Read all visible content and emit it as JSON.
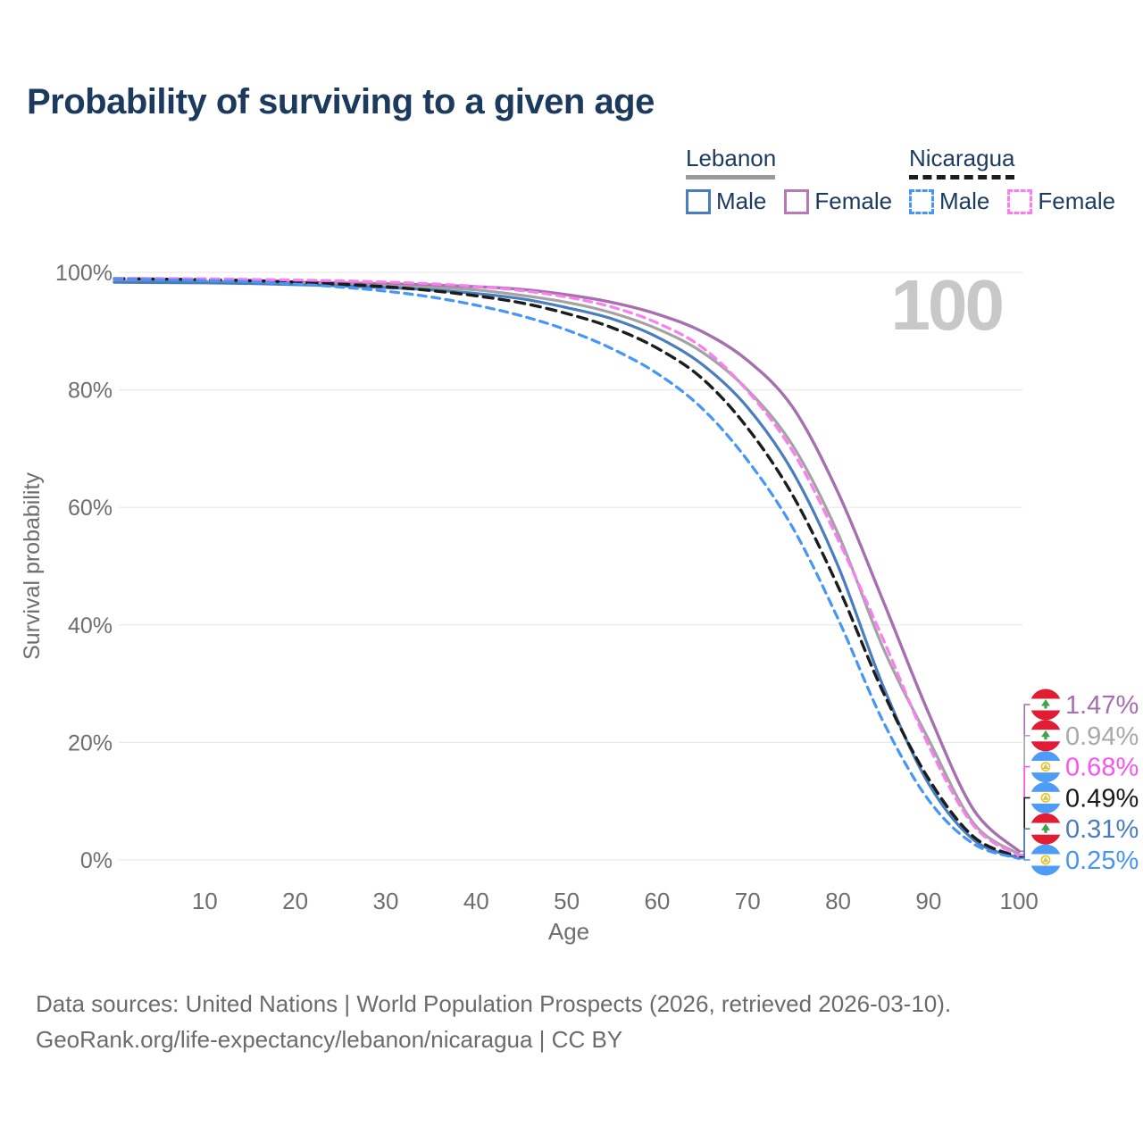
{
  "title": {
    "text": "Probability of surviving to a given age",
    "color": "#1c3a5e"
  },
  "legend": {
    "groups": [
      {
        "name": "Lebanon",
        "line_style": "solid",
        "underline_color": "#9a9a9a",
        "items": [
          {
            "label": "Male",
            "color": "#4a7dbd"
          },
          {
            "label": "Female",
            "color": "#b77ab9"
          }
        ]
      },
      {
        "name": "Nicaragua",
        "line_style": "dashed",
        "underline_color": "#1c1c1c",
        "items": [
          {
            "label": "Male",
            "color": "#4596f7"
          },
          {
            "label": "Female",
            "color": "#fb7df0"
          }
        ]
      }
    ]
  },
  "watermark": {
    "text": "100",
    "color": "#c8c8c8"
  },
  "chart_data": {
    "type": "line",
    "title": "Probability of surviving to a given age",
    "xlabel": "Age",
    "ylabel": "Survival probability",
    "xlim": [
      0,
      100
    ],
    "ylim": [
      0,
      100
    ],
    "grid": "horizontal",
    "legend_position": "top-right",
    "x_ticks": [
      10,
      20,
      30,
      40,
      50,
      60,
      70,
      80,
      90,
      100
    ],
    "y_ticks": [
      {
        "value": 100,
        "label": "100%"
      },
      {
        "value": 80,
        "label": "80%"
      },
      {
        "value": 60,
        "label": "60%"
      },
      {
        "value": 40,
        "label": "40%"
      },
      {
        "value": 20,
        "label": "20%"
      },
      {
        "value": 0,
        "label": "0%"
      }
    ],
    "x": [
      0,
      5,
      10,
      15,
      20,
      25,
      30,
      35,
      40,
      45,
      50,
      55,
      60,
      65,
      70,
      75,
      80,
      85,
      90,
      95,
      100
    ],
    "series": [
      {
        "name": "Lebanon Female",
        "country": "lebanon",
        "sex": "female",
        "color": "#a86fb0",
        "dash": false,
        "width": 3.4,
        "values": [
          98.5,
          98.45,
          98.4,
          98.35,
          98.3,
          98.2,
          98.05,
          97.85,
          97.55,
          97.1,
          96.2,
          94.9,
          92.9,
          89.9,
          85.0,
          77.0,
          62.5,
          44.0,
          25.0,
          8.5,
          1.47
        ]
      },
      {
        "name": "Lebanon Total",
        "country": "lebanon",
        "sex": "both",
        "color": "#a3a3a3",
        "dash": false,
        "width": 3.2,
        "values": [
          98.4,
          98.35,
          98.3,
          98.2,
          98.1,
          97.95,
          97.75,
          97.45,
          97.0,
          96.1,
          94.9,
          93.1,
          90.4,
          86.4,
          80.0,
          70.5,
          55.5,
          36.0,
          20.5,
          6.2,
          0.94
        ]
      },
      {
        "name": "Lebanon Male",
        "country": "lebanon",
        "sex": "male",
        "color": "#4a7dbd",
        "dash": false,
        "width": 3.2,
        "values": [
          98.3,
          98.25,
          98.2,
          98.1,
          97.9,
          97.7,
          97.4,
          97.0,
          96.4,
          95.5,
          94.0,
          92.1,
          89.0,
          84.3,
          77.0,
          66.0,
          50.0,
          29.5,
          13.0,
          3.4,
          0.31
        ]
      },
      {
        "name": "Nicaragua Total",
        "country": "nicaragua",
        "sex": "both",
        "color": "#1c1c1c",
        "dash": true,
        "dash_array": "11 7",
        "width": 3.4,
        "values": [
          98.95,
          98.85,
          98.75,
          98.6,
          98.35,
          98.0,
          97.55,
          96.9,
          96.0,
          94.8,
          93.0,
          90.6,
          87.1,
          81.9,
          73.5,
          62.0,
          46.5,
          28.5,
          13.8,
          3.9,
          0.49
        ]
      },
      {
        "name": "Nicaragua Female",
        "country": "nicaragua",
        "sex": "female",
        "color": "#fb7df0",
        "dash": true,
        "dash_array": "9 6.5",
        "width": 3.2,
        "values": [
          99.0,
          98.95,
          98.9,
          98.8,
          98.7,
          98.55,
          98.35,
          98.05,
          97.6,
          96.9,
          95.8,
          94.1,
          91.4,
          87.2,
          79.8,
          69.5,
          54.5,
          37.5,
          19.5,
          5.8,
          0.68
        ]
      },
      {
        "name": "Nicaragua Male",
        "country": "nicaragua",
        "sex": "male",
        "color": "#4596f7",
        "dash": true,
        "dash_array": "9 6.5",
        "width": 3.2,
        "values": [
          98.9,
          98.75,
          98.6,
          98.4,
          98.0,
          97.5,
          96.8,
          95.8,
          94.4,
          92.6,
          90.2,
          87.0,
          82.8,
          76.8,
          68.0,
          56.5,
          41.0,
          23.5,
          10.2,
          2.7,
          0.25
        ]
      }
    ],
    "end_labels": [
      {
        "text": "1.47%",
        "value": 1.47,
        "color": "#a96cb3",
        "flag": "lebanon",
        "series": "Lebanon Female"
      },
      {
        "text": "0.94%",
        "value": 0.94,
        "color": "#a8a8a8",
        "flag": "lebanon",
        "series": "Lebanon Total"
      },
      {
        "text": "0.68%",
        "value": 0.68,
        "color": "#fb53ef",
        "flag": "nicaragua",
        "series": "Nicaragua Female"
      },
      {
        "text": "0.49%",
        "value": 0.49,
        "color": "#1a1a1a",
        "flag": "nicaragua",
        "series": "Nicaragua Total"
      },
      {
        "text": "0.31%",
        "value": 0.31,
        "color": "#4a7dbd",
        "flag": "lebanon",
        "series": "Lebanon Male"
      },
      {
        "text": "0.25%",
        "value": 0.25,
        "color": "#4596f7",
        "flag": "nicaragua",
        "series": "Nicaragua Male"
      }
    ],
    "flag_colors": {
      "lebanon": {
        "band": "#e11d33",
        "middle": "#ffffff",
        "emblem": "#3fa34d"
      },
      "nicaragua": {
        "band": "#4e9cf5",
        "middle": "#ffffff",
        "emblem": "#f2c40f"
      }
    },
    "axis_text_color": "#6e6e6e",
    "grid_color": "#e9e9e9"
  },
  "footer": {
    "line1": "Data sources: United Nations | World Population Prospects (2026, retrieved 2026-03-10).",
    "line2": "GeoRank.org/life-expectancy/lebanon/nicaragua | CC BY"
  }
}
